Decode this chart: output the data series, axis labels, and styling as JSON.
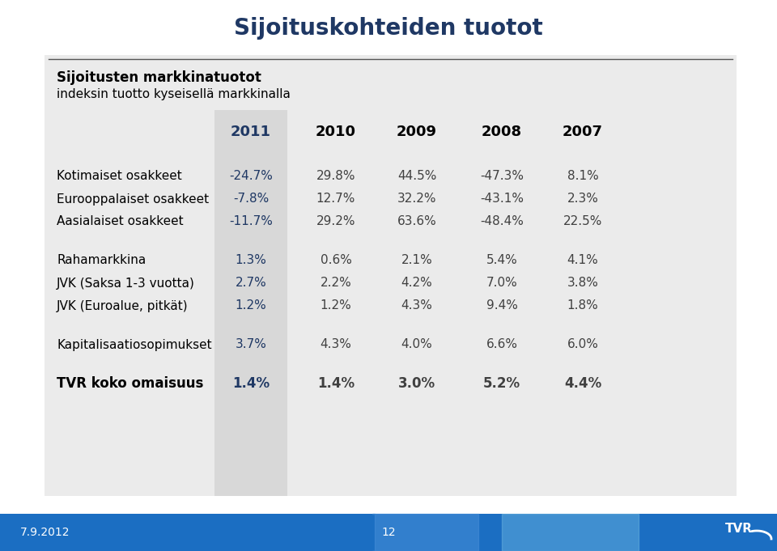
{
  "title": "Sijoituskohteiden tuotot",
  "subtitle_bold": "Sijoitusten markkinatuotot",
  "subtitle_normal": "indeksin tuotto kyseisellä markkinalla",
  "years": [
    "2011",
    "2010",
    "2009",
    "2008",
    "2007"
  ],
  "rows": [
    {
      "label": "Kotimaiset osakkeet",
      "values": [
        "-24.7%",
        "29.8%",
        "44.5%",
        "-47.3%",
        "8.1%"
      ],
      "bold": false,
      "spacer_above": false
    },
    {
      "label": "Eurooppalaiset osakkeet",
      "values": [
        "-7.8%",
        "12.7%",
        "32.2%",
        "-43.1%",
        "2.3%"
      ],
      "bold": false,
      "spacer_above": false
    },
    {
      "label": "Aasialaiset osakkeet",
      "values": [
        "-11.7%",
        "29.2%",
        "63.6%",
        "-48.4%",
        "22.5%"
      ],
      "bold": false,
      "spacer_above": false
    },
    {
      "label": "Rahamarkkina",
      "values": [
        "1.3%",
        "0.6%",
        "2.1%",
        "5.4%",
        "4.1%"
      ],
      "bold": false,
      "spacer_above": true
    },
    {
      "label": "JVK (Saksa 1-3 vuotta)",
      "values": [
        "2.7%",
        "2.2%",
        "4.2%",
        "7.0%",
        "3.8%"
      ],
      "bold": false,
      "spacer_above": false
    },
    {
      "label": "JVK (Euroalue, pitkät)",
      "values": [
        "1.2%",
        "1.2%",
        "4.3%",
        "9.4%",
        "1.8%"
      ],
      "bold": false,
      "spacer_above": false
    },
    {
      "label": "Kapitalisaatiosopimukset",
      "values": [
        "3.7%",
        "4.3%",
        "4.0%",
        "6.6%",
        "6.0%"
      ],
      "bold": false,
      "spacer_above": true
    },
    {
      "label": "TVR koko omaisuus",
      "values": [
        "1.4%",
        "1.4%",
        "3.0%",
        "5.2%",
        "4.4%"
      ],
      "bold": true,
      "spacer_above": true
    }
  ],
  "col_2011_color": "#1F3864",
  "col_other_color": "#404040",
  "col_2011_header_color": "#1F3864",
  "col2011_bg_color": "#D8D8D8",
  "bg_color": "#EBEBEB",
  "title_color": "#1F3864",
  "footer_bg_color": "#1B6EC2",
  "footer_text_color": "#FFFFFF",
  "footer_left": "7.9.2012",
  "footer_center": "12",
  "line_color": "#555555",
  "white": "#FFFFFF"
}
